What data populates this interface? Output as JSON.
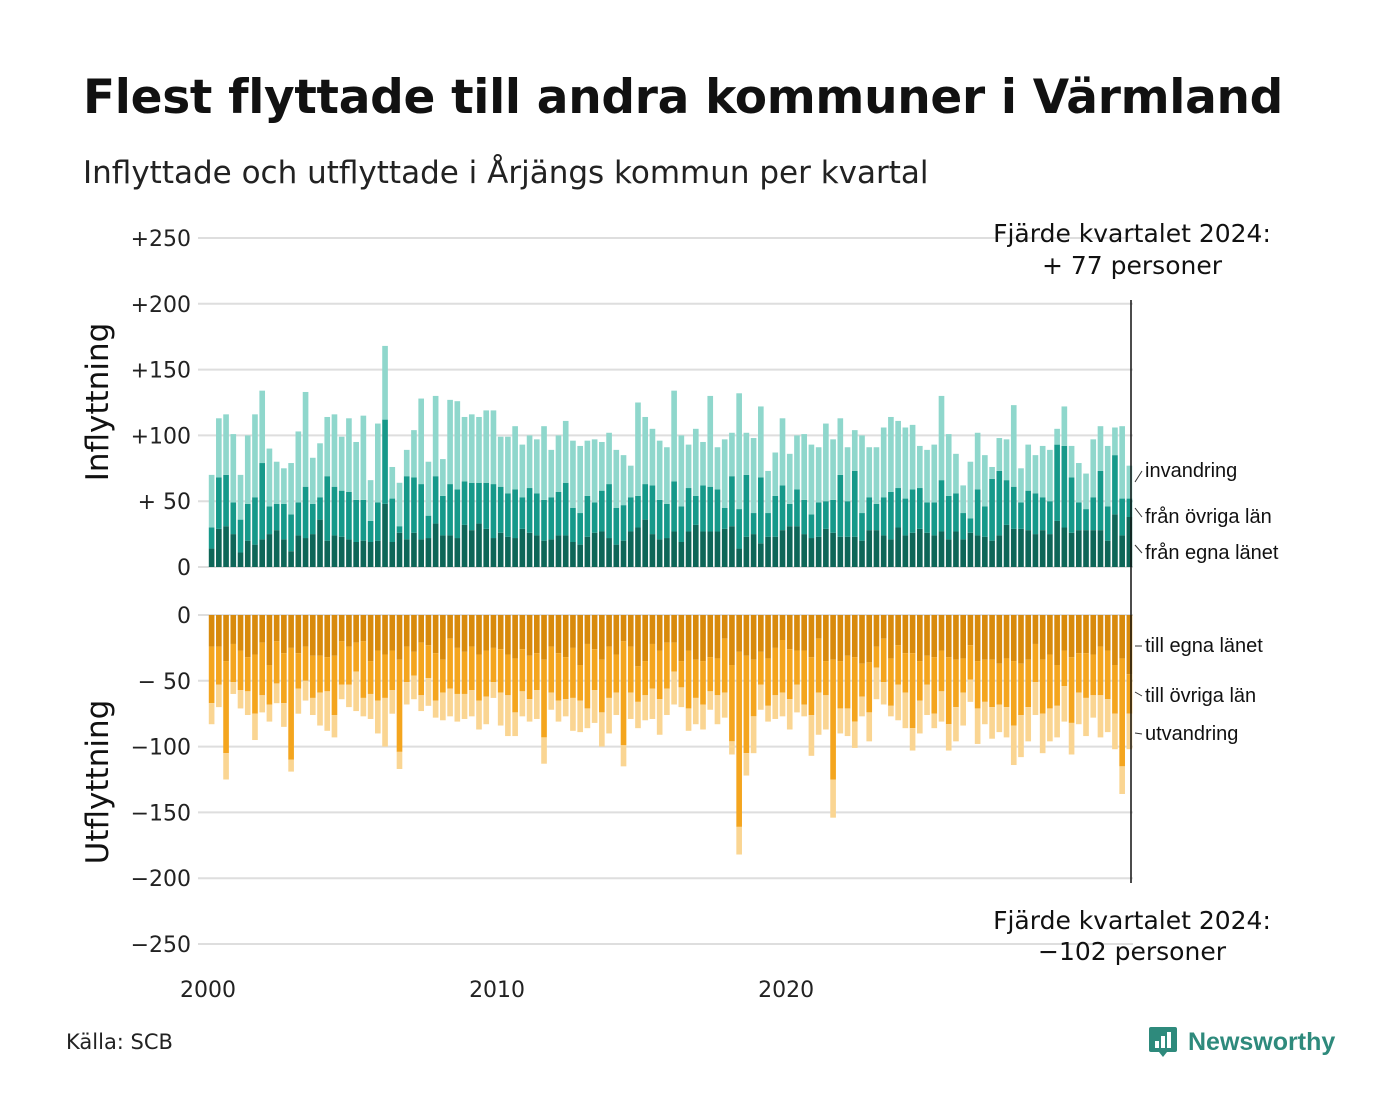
{
  "title": "Flest flyttade till andra kommuner i Värmland",
  "subtitle": "Inflyttade och utflyttade i Årjängs kommun per kvartal",
  "source": "Källa: SCB",
  "brand": "Newsworthy",
  "colors": {
    "in_egna": "#0e6658",
    "in_ovriga": "#16998a",
    "in_invandring": "#8fd7cc",
    "out_egna": "#d88a0c",
    "out_ovriga": "#f4a51e",
    "out_utvandring": "#fad592",
    "grid": "#dedede",
    "brand": "#2e8a7c"
  },
  "chart_data": {
    "type": "bar",
    "stacked": true,
    "period": "quarterly",
    "x_ticks": [
      "2000",
      "2010",
      "2020"
    ],
    "x_start": 2000.0,
    "quarter_step": 0.25,
    "grid": true,
    "panels": [
      {
        "name": "inflyttning",
        "axis_title": "Inflyttning",
        "ylim": [
          0,
          250
        ],
        "y_ticks": [
          "+250",
          "+200",
          "+150",
          "+100",
          "+ 50",
          "0"
        ],
        "y_tick_values": [
          250,
          200,
          150,
          100,
          50,
          0
        ],
        "series": [
          {
            "name": "från egna länet",
            "values": [
              14,
              29,
              31,
              25,
              11,
              20,
              17,
              21,
              25,
              28,
              21,
              12,
              24,
              22,
              25,
              36,
              20,
              24,
              23,
              21,
              19,
              20,
              19,
              20,
              48,
              19,
              26,
              21,
              26,
              21,
              22,
              33,
              24,
              24,
              22,
              32,
              28,
              33,
              29,
              22,
              26,
              23,
              22,
              29,
              26,
              24,
              20,
              21,
              24,
              24,
              19,
              17,
              23,
              26,
              27,
              22,
              17,
              20,
              27,
              30,
              36,
              25,
              21,
              22,
              27,
              19,
              27,
              32,
              27,
              27,
              27,
              29,
              31,
              14,
              23,
              25,
              18,
              23,
              23,
              28,
              31,
              31,
              25,
              22,
              23,
              29,
              26,
              23,
              23,
              23,
              20,
              28,
              28,
              24,
              21,
              30,
              24,
              26,
              29,
              26,
              24,
              27,
              21,
              27,
              21,
              26,
              24,
              23,
              20,
              24,
              32,
              29,
              29,
              28,
              25,
              28,
              25,
              35,
              30,
              26,
              28,
              28,
              28,
              28,
              20,
              40,
              24,
              38
            ]
          },
          {
            "name": "från övriga län",
            "values": [
              16,
              39,
              39,
              24,
              25,
              28,
              36,
              58,
              21,
              20,
              27,
              28,
              25,
              39,
              23,
              17,
              49,
              37,
              35,
              36,
              32,
              31,
              16,
              29,
              64,
              33,
              5,
              48,
              42,
              42,
              17,
              36,
              30,
              39,
              37,
              33,
              36,
              31,
              35,
              41,
              35,
              33,
              37,
              24,
              34,
              32,
              31,
              32,
              33,
              40,
              26,
              24,
              31,
              23,
              31,
              41,
              28,
              27,
              26,
              24,
              27,
              37,
              30,
              26,
              38,
              27,
              33,
              22,
              35,
              34,
              32,
              16,
              38,
              30,
              47,
              16,
              50,
              18,
              31,
              34,
              17,
              28,
              26,
              18,
              26,
              21,
              25,
              47,
              27,
              50,
              21,
              25,
              20,
              29,
              36,
              30,
              28,
              33,
              31,
              23,
              25,
              39,
              33,
              29,
              20,
              11,
              35,
              23,
              47,
              49,
              34,
              32,
              20,
              30,
              31,
              25,
              25,
              58,
              62,
              42,
              21,
              16,
              25,
              45,
              26,
              45,
              28,
              14
            ]
          },
          {
            "name": "invandring",
            "values": [
              40,
              45,
              46,
              52,
              34,
              52,
              63,
              55,
              44,
              32,
              27,
              39,
              54,
              72,
              35,
              41,
              45,
              55,
              41,
              56,
              44,
              64,
              31,
              60,
              56,
              24,
              33,
              20,
              36,
              65,
              41,
              61,
              28,
              64,
              67,
              49,
              52,
              50,
              55,
              56,
              38,
              43,
              48,
              40,
              40,
              41,
              56,
              36,
              43,
              47,
              51,
              51,
              42,
              48,
              37,
              39,
              44,
              38,
              24,
              71,
              51,
              43,
              45,
              43,
              69,
              54,
              33,
              51,
              33,
              69,
              32,
              52,
              33,
              88,
              32,
              57,
              54,
              32,
              33,
              51,
              38,
              41,
              50,
              53,
              42,
              59,
              46,
              43,
              41,
              31,
              59,
              38,
              43,
              53,
              57,
              51,
              54,
              49,
              32,
              40,
              44,
              64,
              47,
              30,
              21,
              43,
              43,
              39,
              9,
              25,
              31,
              62,
              26,
              35,
              29,
              39,
              39,
              12,
              30,
              24,
              30,
              27,
              44,
              34,
              46,
              21,
              55,
              25
            ]
          }
        ]
      },
      {
        "name": "utflyttning",
        "axis_title": "Utflyttning",
        "ylim": [
          -250,
          0
        ],
        "y_ticks": [
          "0",
          "− 50",
          "−100",
          "−150",
          "−200",
          "−250"
        ],
        "y_tick_values": [
          0,
          -50,
          -100,
          -150,
          -200,
          -250
        ],
        "series": [
          {
            "name": "till egna länet",
            "values": [
              -24,
              -24,
              -35,
              -22,
              -27,
              -32,
              -30,
              -21,
              -38,
              -20,
              -29,
              -25,
              -29,
              -24,
              -31,
              -31,
              -32,
              -31,
              -20,
              -24,
              -21,
              -20,
              -35,
              -27,
              -30,
              -27,
              -34,
              -24,
              -28,
              -21,
              -23,
              -29,
              -34,
              -18,
              -25,
              -28,
              -24,
              -30,
              -27,
              -25,
              -26,
              -30,
              -33,
              -26,
              -31,
              -29,
              -34,
              -24,
              -29,
              -32,
              -25,
              -38,
              -22,
              -26,
              -34,
              -24,
              -30,
              -20,
              -24,
              -39,
              -35,
              -22,
              -27,
              -21,
              -21,
              -35,
              -27,
              -34,
              -35,
              -32,
              -33,
              -18,
              -38,
              -28,
              -31,
              -34,
              -28,
              -33,
              -25,
              -19,
              -26,
              -27,
              -27,
              -32,
              -18,
              -35,
              -34,
              -35,
              -31,
              -32,
              -37,
              -36,
              -24,
              -18,
              -33,
              -23,
              -29,
              -29,
              -35,
              -31,
              -32,
              -27,
              -32,
              -34,
              -33,
              -23,
              -35,
              -34,
              -34,
              -37,
              -33,
              -35,
              -37,
              -34,
              -22,
              -34,
              -30,
              -38,
              -27,
              -32,
              -29,
              -29,
              -30,
              -24,
              -27,
              -38,
              -33,
              -45
            ]
          },
          {
            "name": "till övriga län",
            "values": [
              -43,
              -29,
              -70,
              -29,
              -30,
              -26,
              -45,
              -40,
              -30,
              -32,
              -38,
              -85,
              -27,
              -26,
              -32,
              -28,
              -26,
              -45,
              -33,
              -29,
              -22,
              -43,
              -25,
              -38,
              -33,
              -30,
              -70,
              -27,
              -18,
              -40,
              -25,
              -36,
              -25,
              -38,
              -35,
              -32,
              -33,
              -35,
              -35,
              -26,
              -33,
              -31,
              -41,
              -32,
              -33,
              -28,
              -59,
              -35,
              -36,
              -32,
              -38,
              -27,
              -49,
              -31,
              -40,
              -39,
              -29,
              -79,
              -35,
              -27,
              -26,
              -34,
              -37,
              -35,
              -22,
              -20,
              -44,
              -29,
              -33,
              -26,
              -28,
              -41,
              -58,
              -133,
              -74,
              -43,
              -25,
              -36,
              -36,
              -40,
              -38,
              -26,
              -41,
              -44,
              -41,
              -26,
              -91,
              -36,
              -40,
              -49,
              -25,
              -38,
              -16,
              -33,
              -36,
              -30,
              -30,
              -57,
              -30,
              -22,
              -43,
              -31,
              -51,
              -36,
              -26,
              -26,
              -36,
              -32,
              -36,
              -31,
              -37,
              -49,
              -39,
              -36,
              -29,
              -41,
              -41,
              -31,
              -27,
              -50,
              -30,
              -34,
              -31,
              -37,
              -37,
              -37,
              -82,
              -30
            ]
          },
          {
            "name": "utvandring",
            "values": [
              -16,
              -17,
              -20,
              -9,
              -14,
              -18,
              -20,
              -13,
              -13,
              -15,
              -18,
              -9,
              -19,
              -15,
              -13,
              -25,
              -30,
              -17,
              -11,
              -17,
              -30,
              -14,
              -19,
              -25,
              -37,
              -18,
              -13,
              -17,
              -18,
              -12,
              -21,
              -13,
              -21,
              -21,
              -21,
              -19,
              -20,
              -22,
              -21,
              -12,
              -25,
              -31,
              -18,
              -19,
              -17,
              -22,
              -20,
              -13,
              -16,
              -13,
              -25,
              -24,
              -15,
              -25,
              -26,
              -27,
              -17,
              -16,
              -20,
              -20,
              -19,
              -23,
              -27,
              -20,
              -25,
              -15,
              -17,
              -20,
              -19,
              -14,
              -22,
              -19,
              -10,
              -21,
              -17,
              -28,
              -19,
              -12,
              -18,
              -18,
              -23,
              -21,
              -9,
              -31,
              -32,
              -26,
              -29,
              -19,
              -21,
              -20,
              -15,
              -22,
              -24,
              -17,
              -8,
              -27,
              -27,
              -17,
              -25,
              -23,
              -11,
              -23,
              -20,
              -26,
              -25,
              -17,
              -27,
              -17,
              -24,
              -21,
              -23,
              -30,
              -32,
              -26,
              -25,
              -30,
              -25,
              -24,
              -27,
              -24,
              -24,
              -29,
              -17,
              -32,
              -25,
              -27,
              -21,
              -27
            ]
          }
        ]
      }
    ],
    "annotations": [
      {
        "panel": "inflyttning",
        "text_lines": [
          "Fjärde kvartalet 2024:",
          "+ 77 personer"
        ],
        "value": 77
      },
      {
        "panel": "utflyttning",
        "text_lines": [
          "Fjärde kvartalet 2024:",
          "−102 personer"
        ],
        "value": -102
      }
    ]
  }
}
